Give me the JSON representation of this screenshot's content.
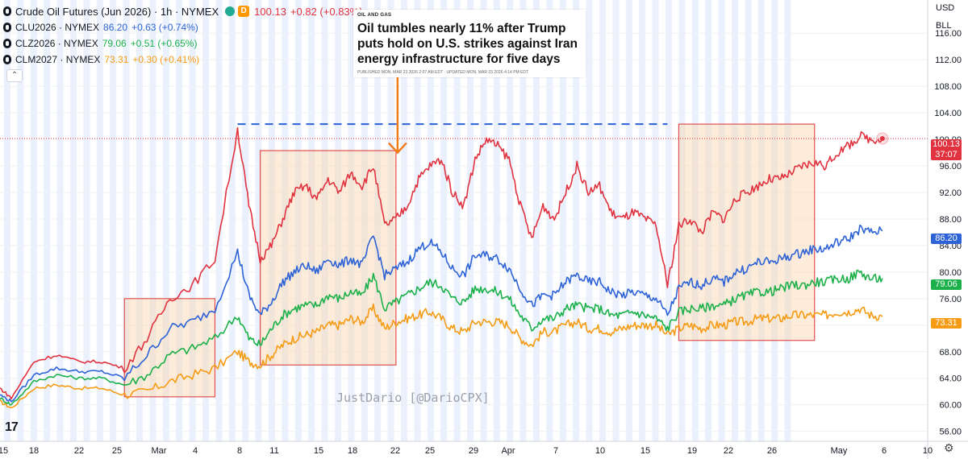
{
  "legend": {
    "main": {
      "symbol": "Crude Oil Futures (Jun 2026) · 1h · NYMEX",
      "badge": "D",
      "last": "100.13",
      "change": "+0.82 (+0.83%)",
      "color": "#e0323f"
    },
    "items": [
      {
        "symbol": "CLU2026 · NYMEX",
        "last": "86.20",
        "change": "+0.63 (+0.74%)",
        "color": "#2d63d6"
      },
      {
        "symbol": "CLZ2026 · NYMEX",
        "last": "79.06",
        "change": "+0.51 (+0.65%)",
        "color": "#1bb04a"
      },
      {
        "symbol": "CLM2027 · NYMEX",
        "last": "73.31",
        "change": "+0.30 (+0.41%)",
        "color": "#f59b14"
      }
    ]
  },
  "axis_header": {
    "currency": "USD",
    "unit": "BLL"
  },
  "news": {
    "tag": "OIL AND GAS",
    "headline": "Oil tumbles nearly 11% after Trump puts hold on U.S. strikes against Iran energy infrastructure for five days",
    "meta": "PUBLISHED MON, MAR 23 2026·2:07 AM EDT · UPDATED MON, MAR 23 2026·4:14 PM EDT"
  },
  "watermark": "JustDario [@DarioCPX]",
  "logo": "17",
  "price_tags": [
    {
      "value": "100.13",
      "sub": "37:07",
      "color": "#e0323f"
    },
    {
      "value": "86.20",
      "color": "#2d63d6"
    },
    {
      "value": "79.06",
      "color": "#1bb04a"
    },
    {
      "value": "73.31",
      "color": "#f59b14"
    }
  ],
  "chart_data": {
    "type": "line",
    "x_tick_labels": [
      "15",
      "18",
      "22",
      "25",
      "Mar",
      "4",
      "8",
      "11",
      "15",
      "18",
      "22",
      "25",
      "29",
      "Apr",
      "7",
      "10",
      "15",
      "19",
      "22",
      "26",
      "May",
      "6",
      "10"
    ],
    "y_tick_labels": [
      "56.00",
      "60.00",
      "64.00",
      "68.00",
      "72.00",
      "76.00",
      "80.00",
      "84.00",
      "88.00",
      "92.00",
      "96.00",
      "100.00",
      "104.00",
      "108.00",
      "112.00",
      "116.00"
    ],
    "ylim": [
      54.5,
      121
    ],
    "grid": true,
    "x_domain": [
      0,
      82
    ],
    "series": [
      {
        "name": "Crude Oil Futures (Jun 2026)",
        "color": "#e0323f",
        "x": [
          0,
          1,
          3,
          5,
          7,
          9,
          11,
          13,
          15,
          17,
          19,
          21,
          22,
          23,
          24,
          25,
          26,
          27,
          28,
          29,
          30,
          31,
          32,
          33,
          34,
          35,
          36,
          37,
          38,
          39,
          40,
          41,
          42,
          43,
          44,
          45,
          46,
          47,
          48,
          49,
          50,
          51,
          52,
          53,
          54,
          55,
          56,
          57,
          58,
          59,
          60,
          61,
          62,
          63,
          64,
          65,
          66,
          67,
          68,
          69,
          70,
          71,
          72,
          73,
          74,
          75,
          76,
          77,
          78
        ],
        "y": [
          62.5,
          61.0,
          66.5,
          67.5,
          66.5,
          66.5,
          65.5,
          70.0,
          76.0,
          78.0,
          82.0,
          101.5,
          90.0,
          82.0,
          84.0,
          88.0,
          92.0,
          93.0,
          91.0,
          94.0,
          92.0,
          95.0,
          93.0,
          96.0,
          87.0,
          88.0,
          90.0,
          94.0,
          96.0,
          97.0,
          92.0,
          90.0,
          97.0,
          100.0,
          99.0,
          97.0,
          90.0,
          85.0,
          90.0,
          88.0,
          92.0,
          96.0,
          92.0,
          93.0,
          89.0,
          88.0,
          89.0,
          88.0,
          87.0,
          78.0,
          87.0,
          88.0,
          86.0,
          89.0,
          88.0,
          91.0,
          92.0,
          93.0,
          94.0,
          94.0,
          95.0,
          96.0,
          96.5,
          96.0,
          98.0,
          99.0,
          100.5,
          100.0,
          100.13
        ]
      },
      {
        "name": "CLU2026",
        "color": "#2d63d6",
        "x": [
          0,
          1,
          3,
          5,
          7,
          9,
          11,
          13,
          15,
          17,
          19,
          21,
          22,
          23,
          24,
          25,
          26,
          27,
          28,
          29,
          30,
          31,
          32,
          33,
          34,
          35,
          36,
          37,
          38,
          39,
          40,
          41,
          42,
          43,
          44,
          45,
          46,
          47,
          48,
          49,
          50,
          51,
          52,
          53,
          54,
          55,
          56,
          57,
          58,
          59,
          60,
          61,
          62,
          63,
          64,
          65,
          66,
          67,
          68,
          69,
          70,
          71,
          72,
          73,
          74,
          75,
          76,
          77,
          78
        ],
        "y": [
          61.5,
          60.5,
          64.5,
          65.5,
          65.0,
          65.0,
          64.0,
          67.5,
          71.5,
          72.5,
          74.5,
          83.0,
          76.5,
          73.5,
          75.5,
          78.5,
          80.0,
          81.0,
          80.0,
          82.0,
          81.0,
          82.0,
          81.0,
          85.5,
          79.5,
          80.5,
          81.5,
          83.5,
          84.5,
          83.0,
          80.5,
          79.5,
          82.5,
          82.5,
          82.0,
          80.5,
          77.5,
          75.0,
          76.5,
          76.5,
          78.5,
          79.5,
          78.5,
          78.5,
          77.0,
          76.5,
          77.0,
          76.5,
          76.0,
          73.5,
          77.5,
          78.5,
          78.0,
          79.0,
          78.5,
          80.0,
          80.5,
          81.5,
          81.5,
          82.0,
          82.5,
          83.0,
          83.5,
          83.5,
          84.5,
          85.0,
          86.5,
          86.0,
          86.2
        ]
      },
      {
        "name": "CLZ2026",
        "color": "#1bb04a",
        "x": [
          0,
          1,
          3,
          5,
          7,
          9,
          11,
          13,
          15,
          17,
          19,
          21,
          22,
          23,
          24,
          25,
          26,
          27,
          28,
          29,
          30,
          31,
          32,
          33,
          34,
          35,
          36,
          37,
          38,
          39,
          40,
          41,
          42,
          43,
          44,
          45,
          46,
          47,
          48,
          49,
          50,
          51,
          52,
          53,
          54,
          55,
          56,
          57,
          58,
          59,
          60,
          61,
          62,
          63,
          64,
          65,
          66,
          67,
          68,
          69,
          70,
          71,
          72,
          73,
          74,
          75,
          76,
          77,
          78
        ],
        "y": [
          61.0,
          60.0,
          63.5,
          64.5,
          64.0,
          64.0,
          63.0,
          64.5,
          67.5,
          68.5,
          70.0,
          73.5,
          70.0,
          69.0,
          71.5,
          73.5,
          74.5,
          75.0,
          75.0,
          76.5,
          76.0,
          77.0,
          76.5,
          79.5,
          74.5,
          75.5,
          76.5,
          77.5,
          78.5,
          78.0,
          76.0,
          75.5,
          77.5,
          77.5,
          77.0,
          76.0,
          73.5,
          71.5,
          73.0,
          73.0,
          74.5,
          75.0,
          74.5,
          74.5,
          73.5,
          73.5,
          74.0,
          73.5,
          73.0,
          71.5,
          74.0,
          74.5,
          74.5,
          75.0,
          75.0,
          76.0,
          76.5,
          77.0,
          77.0,
          77.5,
          78.0,
          78.0,
          78.5,
          78.5,
          79.0,
          79.0,
          80.0,
          79.0,
          79.06
        ]
      },
      {
        "name": "CLM2027",
        "color": "#f59b14",
        "x": [
          0,
          1,
          3,
          5,
          7,
          9,
          11,
          13,
          15,
          17,
          19,
          21,
          22,
          23,
          24,
          25,
          26,
          27,
          28,
          29,
          30,
          31,
          32,
          33,
          34,
          35,
          36,
          37,
          38,
          39,
          40,
          41,
          42,
          43,
          44,
          45,
          46,
          47,
          48,
          49,
          50,
          51,
          52,
          53,
          54,
          55,
          56,
          57,
          58,
          59,
          60,
          61,
          62,
          63,
          64,
          65,
          66,
          67,
          68,
          69,
          70,
          71,
          72,
          73,
          74,
          75,
          76,
          77,
          78
        ],
        "y": [
          60.5,
          59.5,
          62.5,
          63.0,
          62.5,
          62.5,
          61.5,
          62.0,
          63.5,
          64.5,
          65.5,
          68.0,
          66.5,
          66.0,
          67.5,
          69.0,
          70.0,
          70.5,
          71.0,
          72.0,
          72.0,
          73.0,
          72.5,
          74.5,
          71.5,
          72.5,
          73.0,
          73.5,
          74.0,
          73.0,
          71.5,
          71.0,
          72.5,
          72.5,
          72.5,
          72.0,
          70.0,
          69.0,
          71.0,
          71.0,
          72.0,
          72.5,
          71.5,
          71.5,
          71.0,
          71.5,
          72.0,
          72.0,
          72.0,
          70.5,
          71.5,
          72.0,
          71.5,
          72.0,
          72.0,
          72.5,
          72.5,
          73.0,
          73.0,
          73.0,
          73.5,
          73.5,
          73.5,
          73.5,
          74.0,
          74.0,
          74.5,
          73.5,
          73.31
        ]
      }
    ],
    "annotations": [
      {
        "type": "box",
        "x": [
          11,
          19
        ],
        "y": [
          61.2,
          76.0
        ]
      },
      {
        "type": "box",
        "x": [
          23,
          35
        ],
        "y": [
          66.0,
          98.3
        ]
      },
      {
        "type": "box",
        "x": [
          60,
          72
        ],
        "y": [
          69.7,
          102.3
        ]
      },
      {
        "type": "dashed-line",
        "x": [
          21,
          59
        ],
        "y": [
          102.3,
          102.3
        ],
        "color": "#2d63d6"
      },
      {
        "type": "arrow",
        "x": [
          35,
          35
        ],
        "y": [
          112,
          98
        ],
        "color": "#f07b1a"
      },
      {
        "type": "price-line",
        "y": 100.13,
        "color": "#e0323f"
      }
    ]
  }
}
